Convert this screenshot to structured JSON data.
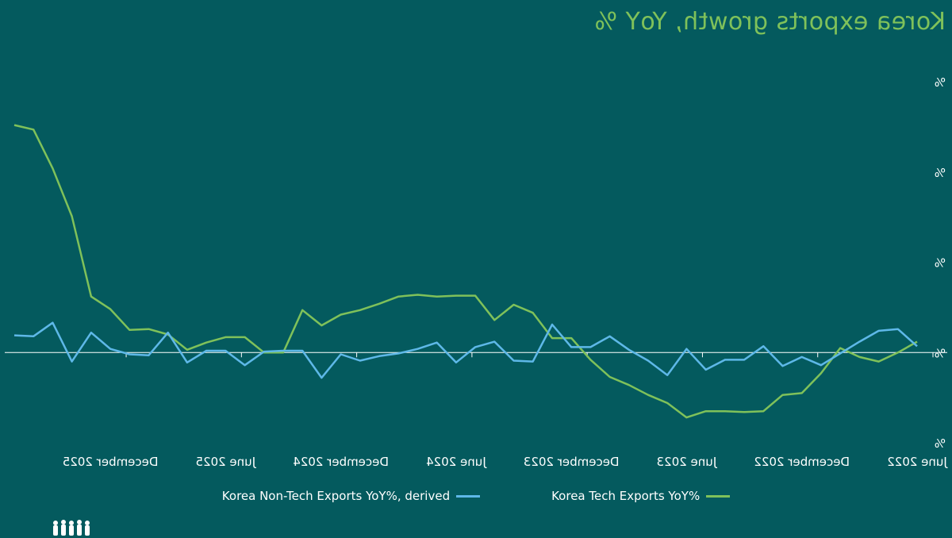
{
  "chart_data": {
    "type": "line",
    "title": "Korea exports growth, YoY %",
    "mirrored": true,
    "categories": [
      "Jun 2022",
      "Jul 2022",
      "Aug 2022",
      "Sep 2022",
      "Oct 2022",
      "Nov 2022",
      "Dec 2022",
      "Jan 2023",
      "Feb 2023",
      "Mar 2023",
      "Apr 2023",
      "May 2023",
      "Jun 2023",
      "Jul 2023",
      "Aug 2023",
      "Sep 2023",
      "Oct 2023",
      "Nov 2023",
      "Dec 2023",
      "Jan 2024",
      "Feb 2024",
      "Mar 2024",
      "Apr 2024",
      "May 2024",
      "Jun 2024",
      "Jul 2024",
      "Aug 2024",
      "Sep 2024",
      "Oct 2024",
      "Nov 2024",
      "Dec 2024",
      "Jan 2025",
      "Feb 2025",
      "Mar 2025",
      "Apr 2025",
      "May 2025",
      "Jun 2025",
      "Jul 2025",
      "Aug 2025",
      "Sep 2025",
      "Oct 2025",
      "Nov 2025",
      "Dec 2025",
      "Jan 2026",
      "Feb 2026",
      "Mar 2026",
      "Apr 2026",
      "May 2026"
    ],
    "x_tick_labels": [
      "June 2022",
      "December 2022",
      "June 2023",
      "December 2023",
      "June 2024",
      "December 2024",
      "June 2025",
      "December 2025"
    ],
    "x_tick_indices": [
      0,
      6,
      12,
      18,
      24,
      30,
      36,
      42
    ],
    "y_tick_values": [
      -10,
      0,
      10,
      20,
      30
    ],
    "y_tick_labels": [
      "%",
      "%",
      "%",
      "%",
      "%"
    ],
    "ylim": [
      -10,
      30
    ],
    "zero_line": true,
    "legend_position": "bottom",
    "series": [
      {
        "name": "Korea Tech Exports YoY%",
        "color": "#7fc15a",
        "values": [
          1.2,
          0.0,
          -1.0,
          -0.5,
          0.5,
          -2.3,
          -4.5,
          -4.7,
          -6.5,
          -6.6,
          -6.5,
          -6.5,
          -7.2,
          -5.6,
          -4.7,
          -3.6,
          -2.7,
          -0.8,
          1.6,
          1.6,
          4.4,
          5.3,
          3.6,
          6.3,
          6.3,
          6.2,
          6.4,
          6.2,
          5.4,
          4.7,
          4.2,
          3.0,
          4.7,
          0.0,
          0.0,
          1.7,
          1.7,
          1.1,
          0.3,
          2.0,
          2.6,
          2.5,
          4.8,
          6.2,
          15.1,
          20.4,
          24.7,
          25.2
        ]
      },
      {
        "name": "Korea Non-Tech Exports YoY%, derived",
        "color": "#5eb8e8",
        "values": [
          0.7,
          2.6,
          2.4,
          1.2,
          -0.1,
          -1.4,
          -0.5,
          -1.5,
          0.7,
          -0.8,
          -0.8,
          -1.9,
          0.4,
          -2.5,
          -0.9,
          0.3,
          1.8,
          0.6,
          0.6,
          3.1,
          -1.0,
          -0.9,
          1.2,
          0.6,
          -1.1,
          1.1,
          0.4,
          -0.1,
          -0.4,
          -0.9,
          -0.2,
          -2.8,
          0.2,
          0.2,
          0.1,
          -1.4,
          0.2,
          0.2,
          -1.1,
          2.2,
          -0.3,
          -0.2,
          0.4,
          2.2,
          -1.0,
          3.3,
          1.8,
          1.9
        ]
      }
    ]
  }
}
